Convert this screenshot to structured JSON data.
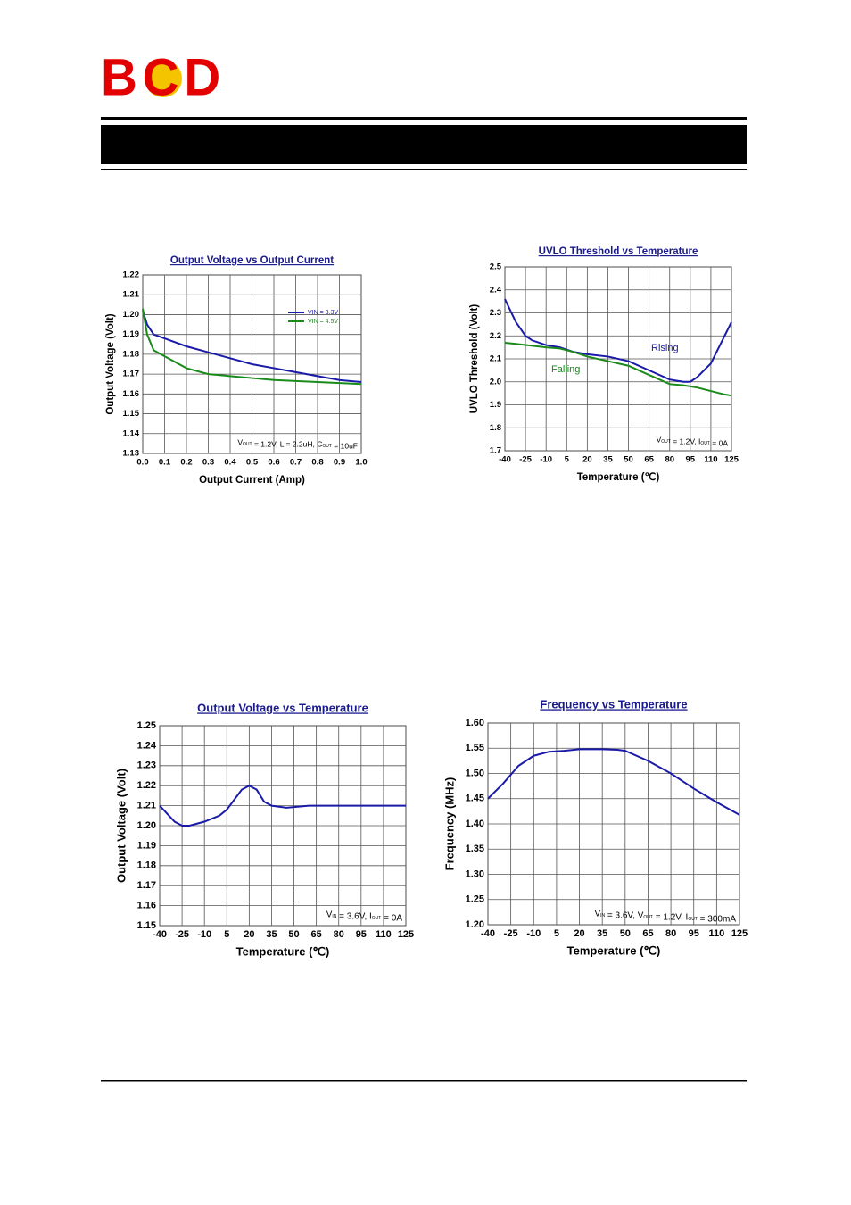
{
  "header": {
    "logo": "BCD"
  },
  "chart_data": [
    {
      "type": "line",
      "title": "Output Voltage vs Output Current",
      "xlabel": "Output Current (Amp)",
      "ylabel": "Output Voltage (Volt)",
      "annotation": "VOUT = 1.2V, L = 2.2uH, COUT = 10uF",
      "legend": "upper right",
      "grid": true,
      "xlim": [
        0,
        1
      ],
      "xticks": [
        {
          "value": 0,
          "label": "0.0"
        },
        0.1,
        0.2,
        0.3,
        0.4,
        0.5,
        0.6,
        0.7,
        0.8,
        0.9,
        {
          "value": 1,
          "label": "1.0"
        }
      ],
      "ylim": [
        1.13,
        1.22
      ],
      "yticks": [
        1.13,
        1.14,
        1.15,
        1.16,
        1.17,
        1.18,
        1.19,
        {
          "value": 1.2,
          "label": "1.20"
        },
        1.21,
        1.22
      ],
      "x": [
        0,
        0.02,
        0.05,
        0.1,
        0.2,
        0.3,
        0.4,
        0.5,
        0.6,
        0.7,
        0.8,
        0.9,
        1
      ],
      "series": [
        {
          "name": "VIN = 3.3V",
          "color": "#1a1aa8",
          "values": [
            1.202,
            1.195,
            1.19,
            1.188,
            1.184,
            1.181,
            1.178,
            1.175,
            1.173,
            1.171,
            1.169,
            1.167,
            1.166
          ]
        },
        {
          "name": "VIN = 4.5V",
          "color": "#1a8a1a",
          "values": [
            1.203,
            1.19,
            1.182,
            1.179,
            1.173,
            1.17,
            1.169,
            1.168,
            1.167,
            1.1665,
            1.166,
            1.1655,
            1.165
          ]
        }
      ]
    },
    {
      "type": "line",
      "title": "UVLO Threshold vs Temperature",
      "xlabel": "Temperature (℃)",
      "ylabel": "UVLO Threshold (Volt)",
      "annotation": "VOUT = 1.2V, IOUT = 0A",
      "legend": "inline",
      "grid": true,
      "xlim": [
        -40,
        125
      ],
      "xticks": [
        -40,
        -25,
        -10,
        5,
        20,
        35,
        50,
        65,
        80,
        95,
        110,
        125
      ],
      "ylim": [
        1.7,
        2.5
      ],
      "yticks": [
        1.7,
        1.8,
        1.9,
        {
          "value": 2,
          "label": "2.0"
        },
        2.1,
        2.2,
        2.3,
        2.4,
        2.5
      ],
      "x": [
        -40,
        -32,
        -25,
        -20,
        -10,
        0,
        10,
        20,
        35,
        50,
        65,
        80,
        90,
        95,
        100,
        110,
        120,
        125
      ],
      "series": [
        {
          "name": "Rising",
          "color": "#1a1aa8",
          "values": [
            2.36,
            2.26,
            2.2,
            2.18,
            2.16,
            2.15,
            2.13,
            2.12,
            2.11,
            2.09,
            2.05,
            2.01,
            2,
            2,
            2.02,
            2.08,
            2.2,
            2.26
          ]
        },
        {
          "name": "Falling",
          "color": "#1a8a1a",
          "values": [
            2.17,
            2.165,
            2.16,
            2.157,
            2.15,
            2.145,
            2.13,
            2.11,
            2.09,
            2.07,
            2.03,
            1.99,
            1.985,
            1.98,
            1.975,
            1.96,
            1.945,
            1.94
          ]
        }
      ]
    },
    {
      "type": "line",
      "title": "Output Voltage vs Temperature",
      "xlabel": "Temperature (℃)",
      "ylabel": "Output Voltage (Volt)",
      "annotation": "VIN = 3.6V, IOUT = 0A",
      "grid": true,
      "xlim": [
        -40,
        125
      ],
      "xticks": [
        -40,
        -25,
        -10,
        5,
        20,
        35,
        50,
        65,
        80,
        95,
        110,
        125
      ],
      "ylim": [
        1.15,
        1.25
      ],
      "yticks": [
        1.15,
        1.16,
        1.17,
        1.18,
        1.19,
        {
          "value": 1.2,
          "label": "1.20"
        },
        1.21,
        1.22,
        1.23,
        1.24,
        1.25
      ],
      "x": [
        -40,
        -30,
        -25,
        -20,
        -10,
        0,
        5,
        10,
        15,
        20,
        25,
        30,
        35,
        45,
        60,
        125
      ],
      "series": [
        {
          "color": "#1a1aa8",
          "values": [
            1.21,
            1.202,
            1.2,
            1.2,
            1.202,
            1.205,
            1.208,
            1.213,
            1.218,
            1.22,
            1.218,
            1.212,
            1.21,
            1.209,
            1.21,
            1.21
          ]
        }
      ]
    },
    {
      "type": "line",
      "title": "Frequency vs Temperature",
      "xlabel": "Temperature (℃)",
      "ylabel": "Frequency (MHz)",
      "annotation": "VIN = 3.6V, VOUT = 1.2V, IOUT = 300mA",
      "grid": true,
      "xlim": [
        -40,
        125
      ],
      "xticks": [
        -40,
        -25,
        -10,
        5,
        20,
        35,
        50,
        65,
        80,
        95,
        110,
        125
      ],
      "ylim": [
        1.2,
        1.6
      ],
      "yticks": [
        {
          "value": 1.2,
          "label": "1.20"
        },
        1.25,
        {
          "value": 1.3,
          "label": "1.30"
        },
        1.35,
        {
          "value": 1.4,
          "label": "1.40"
        },
        1.45,
        {
          "value": 1.5,
          "label": "1.50"
        },
        1.55,
        {
          "value": 1.6,
          "label": "1.60"
        }
      ],
      "x": [
        -40,
        -30,
        -20,
        -10,
        0,
        10,
        20,
        35,
        45,
        50,
        65,
        80,
        95,
        110,
        125
      ],
      "series": [
        {
          "color": "#1a1aa8",
          "values": [
            1.45,
            1.48,
            1.515,
            1.535,
            1.543,
            1.545,
            1.548,
            1.548,
            1.547,
            1.545,
            1.525,
            1.5,
            1.47,
            1.443,
            1.418
          ]
        }
      ]
    }
  ]
}
